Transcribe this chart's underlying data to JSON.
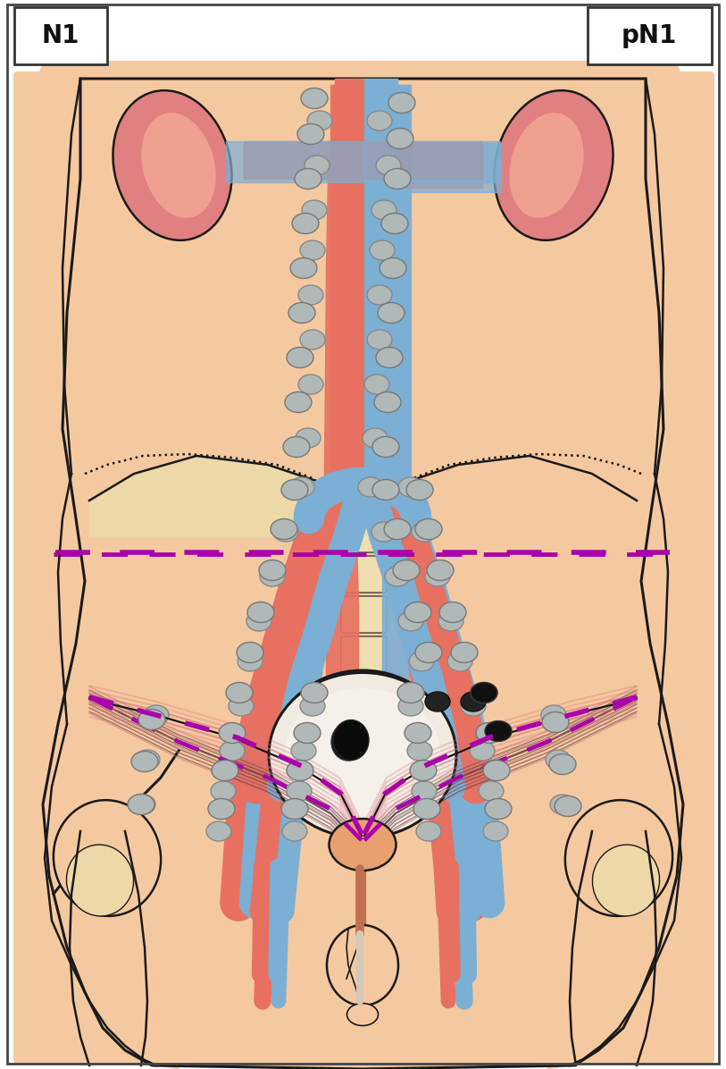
{
  "background_color": "#FFFFFF",
  "skin_color": "#F5C9A0",
  "skin_dark": "#E8A878",
  "outline_color": "#1a1a1a",
  "aorta_color": "#E87060",
  "vena_color": "#7BAFD4",
  "node_fill": "#B0B8B8",
  "node_outline": "#888888",
  "node_dark_fill": "#222222",
  "dashed_line_color": "#AA00AA",
  "muscle_color": "#D4707A",
  "bone_color": "#F0E0C0",
  "kidney_color": "#E08080",
  "label_N1": "N1",
  "label_pN1": "pN1",
  "title_fontsize": 18,
  "label_fontsize": 16
}
